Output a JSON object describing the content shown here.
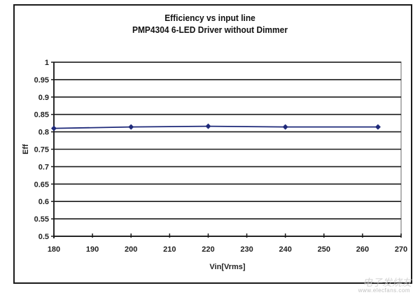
{
  "chart_data": {
    "type": "line",
    "title": "Efficiency vs input line",
    "subtitle": "PMP4304 6-LED Driver without Dimmer",
    "xlabel": "Vin[Vrms]",
    "ylabel": "Eff",
    "xlim": [
      180,
      270
    ],
    "ylim": [
      0.5,
      1
    ],
    "xticks": [
      180,
      190,
      200,
      210,
      220,
      230,
      240,
      250,
      260,
      270
    ],
    "yticks": [
      0.5,
      0.55,
      0.6,
      0.65,
      0.7,
      0.75,
      0.8,
      0.85,
      0.9,
      0.95,
      1
    ],
    "ytick_labels": [
      "0.5",
      "0.55",
      "0.6",
      "0.65",
      "0.7",
      "0.75",
      "0.8",
      "0.85",
      "0.9",
      "0.95",
      "1"
    ],
    "grid": "horizontal",
    "legend": "none",
    "series": [
      {
        "name": "Eff",
        "color": "#1f2a7a",
        "marker": "diamond",
        "x": [
          180,
          200,
          220,
          240,
          264
        ],
        "values": [
          0.81,
          0.814,
          0.816,
          0.814,
          0.814
        ]
      }
    ]
  },
  "watermark": {
    "text": "电子发烧友",
    "url_text": "www.elecfans.com"
  }
}
